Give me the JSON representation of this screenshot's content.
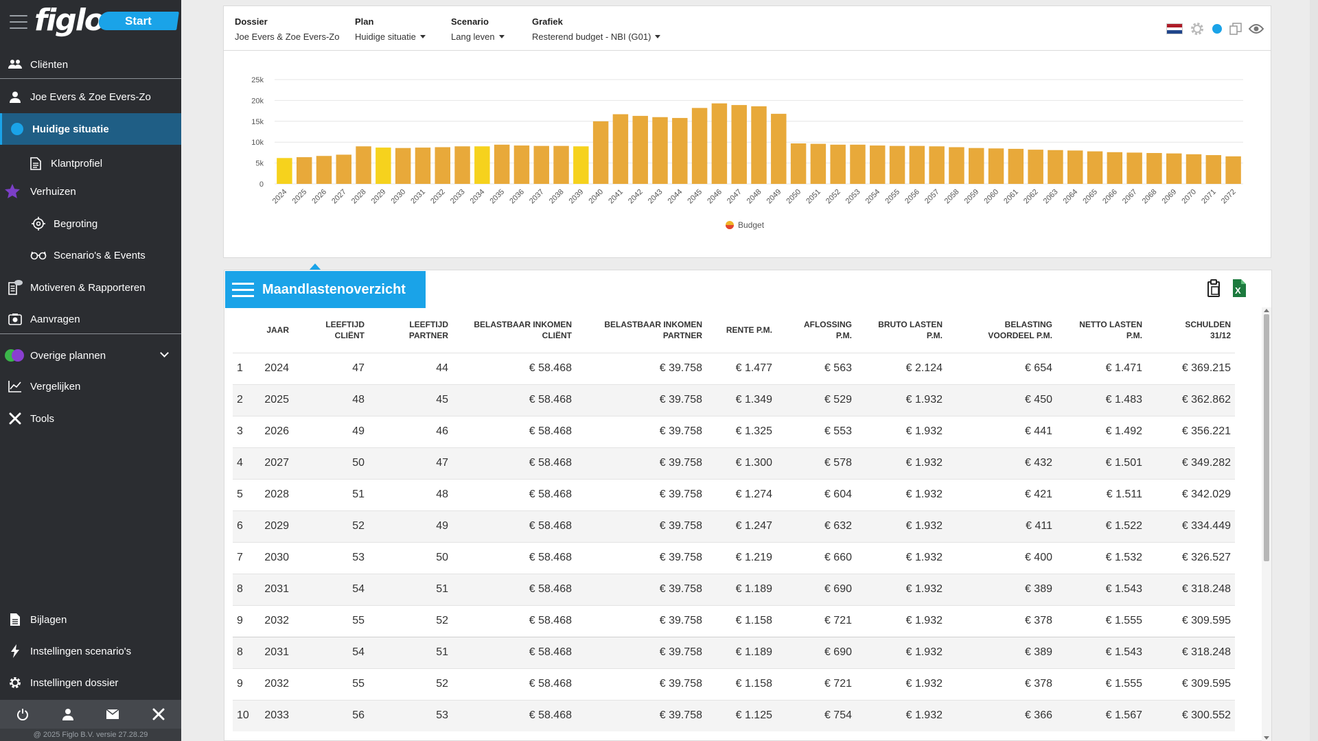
{
  "sidebar": {
    "logo": "figlo",
    "start_label": "Start",
    "items": {
      "clienten": "Cliënten",
      "dossier": "Joe Evers & Zoe Evers-Zo",
      "huidige": "Huidige situatie",
      "klantprofiel": "Klantprofiel",
      "verhuizen": "Verhuizen",
      "begroting": "Begroting",
      "scenarios": "Scenario's & Events",
      "motiveren": "Motiveren & Rapporteren",
      "aanvragen": "Aanvragen",
      "overige": "Overige plannen",
      "vergelijken": "Vergelijken",
      "tools": "Tools",
      "bijlagen": "Bijlagen",
      "inst_scenarios": "Instellingen scenario's",
      "inst_dossier": "Instellingen dossier"
    },
    "copyright": "@ 2025 Figlo B.V. versie 27.28.29"
  },
  "header": {
    "dossier_label": "Dossier",
    "dossier_value": "Joe Evers & Zoe Evers-Zo",
    "plan_label": "Plan",
    "plan_value": "Huidige situatie",
    "scenario_label": "Scenario",
    "scenario_value": "Lang leven",
    "grafiek_label": "Grafiek",
    "grafiek_value": "Resterend budget - NBI (G01)"
  },
  "colors": {
    "accent": "#1aa3e8",
    "bar": "#e8a93a",
    "bar_highlight": "#f6d21d",
    "sidebar_bg": "#2b2d31"
  },
  "chart_data": {
    "type": "bar",
    "categories": [
      "2024",
      "2025",
      "2026",
      "2027",
      "2028",
      "2029",
      "2030",
      "2031",
      "2032",
      "2033",
      "2034",
      "2035",
      "2036",
      "2037",
      "2038",
      "2039",
      "2040",
      "2041",
      "2042",
      "2043",
      "2044",
      "2045",
      "2046",
      "2047",
      "2048",
      "2049",
      "2050",
      "2051",
      "2052",
      "2053",
      "2054",
      "2055",
      "2056",
      "2057",
      "2058",
      "2059",
      "2060",
      "2061",
      "2062",
      "2063",
      "2064",
      "2065",
      "2066",
      "2067",
      "2068",
      "2069",
      "2070",
      "2071",
      "2072"
    ],
    "series": [
      {
        "name": "Budget",
        "values": [
          6200,
          6400,
          6700,
          7000,
          9000,
          8700,
          8600,
          8700,
          8800,
          9000,
          9000,
          9400,
          9200,
          9100,
          9100,
          9000,
          15000,
          16700,
          16300,
          16000,
          15800,
          18200,
          19300,
          18900,
          18600,
          16800,
          9700,
          9600,
          9400,
          9400,
          9200,
          9100,
          9100,
          9000,
          8800,
          8600,
          8500,
          8400,
          8200,
          8100,
          8000,
          7800,
          7600,
          7500,
          7400,
          7300,
          7100,
          6900,
          6600
        ]
      }
    ],
    "highlight_categories": [
      "2024",
      "2029",
      "2034",
      "2039"
    ],
    "yticks": [
      "0",
      "5k",
      "10k",
      "15k",
      "20k",
      "25k"
    ],
    "ylim": [
      0,
      25000
    ],
    "legend": "Budget",
    "legend_position": "bottom-center",
    "grid": true
  },
  "table": {
    "title": "Maandlastenoverzicht",
    "headers": [
      {
        "l1": "",
        "l2": ""
      },
      {
        "l1": "",
        "l2": "Jaar"
      },
      {
        "l1": "Leeftijd",
        "l2": "Cliënt"
      },
      {
        "l1": "Leeftijd",
        "l2": "Partner"
      },
      {
        "l1": "Belastbaar inkomen",
        "l2": "Cliënt"
      },
      {
        "l1": "Belastbaar inkomen",
        "l2": "Partner"
      },
      {
        "l1": "",
        "l2": "Rente P.M."
      },
      {
        "l1": "Aflossing",
        "l2": "P.M."
      },
      {
        "l1": "Bruto lasten",
        "l2": "P.M."
      },
      {
        "l1": "Belasting",
        "l2": "voordeel P.M."
      },
      {
        "l1": "Netto lasten",
        "l2": "P.M."
      },
      {
        "l1": "Schulden",
        "l2": "31/12"
      }
    ],
    "rows": [
      [
        "1",
        "2024",
        "47",
        "44",
        "€ 58.468",
        "€ 39.758",
        "€ 1.477",
        "€ 563",
        "€ 2.124",
        "€ 654",
        "€ 1.471",
        "€ 369.215"
      ],
      [
        "2",
        "2025",
        "48",
        "45",
        "€ 58.468",
        "€ 39.758",
        "€ 1.349",
        "€ 529",
        "€ 1.932",
        "€ 450",
        "€ 1.483",
        "€ 362.862"
      ],
      [
        "3",
        "2026",
        "49",
        "46",
        "€ 58.468",
        "€ 39.758",
        "€ 1.325",
        "€ 553",
        "€ 1.932",
        "€ 441",
        "€ 1.492",
        "€ 356.221"
      ],
      [
        "4",
        "2027",
        "50",
        "47",
        "€ 58.468",
        "€ 39.758",
        "€ 1.300",
        "€ 578",
        "€ 1.932",
        "€ 432",
        "€ 1.501",
        "€ 349.282"
      ],
      [
        "5",
        "2028",
        "51",
        "48",
        "€ 58.468",
        "€ 39.758",
        "€ 1.274",
        "€ 604",
        "€ 1.932",
        "€ 421",
        "€ 1.511",
        "€ 342.029"
      ],
      [
        "6",
        "2029",
        "52",
        "49",
        "€ 58.468",
        "€ 39.758",
        "€ 1.247",
        "€ 632",
        "€ 1.932",
        "€ 411",
        "€ 1.522",
        "€ 334.449"
      ],
      [
        "7",
        "2030",
        "53",
        "50",
        "€ 58.468",
        "€ 39.758",
        "€ 1.219",
        "€ 660",
        "€ 1.932",
        "€ 400",
        "€ 1.532",
        "€ 326.527"
      ],
      [
        "8",
        "2031",
        "54",
        "51",
        "€ 58.468",
        "€ 39.758",
        "€ 1.189",
        "€ 690",
        "€ 1.932",
        "€ 389",
        "€ 1.543",
        "€ 318.248"
      ],
      [
        "9",
        "2032",
        "55",
        "52",
        "€ 58.468",
        "€ 39.758",
        "€ 1.158",
        "€ 721",
        "€ 1.932",
        "€ 378",
        "€ 1.555",
        "€ 309.595"
      ],
      [
        "8",
        "2031",
        "54",
        "51",
        "€ 58.468",
        "€ 39.758",
        "€ 1.189",
        "€ 690",
        "€ 1.932",
        "€ 389",
        "€ 1.543",
        "€ 318.248"
      ],
      [
        "9",
        "2032",
        "55",
        "52",
        "€ 58.468",
        "€ 39.758",
        "€ 1.158",
        "€ 721",
        "€ 1.932",
        "€ 378",
        "€ 1.555",
        "€ 309.595"
      ],
      [
        "10",
        "2033",
        "56",
        "53",
        "€ 58.468",
        "€ 39.758",
        "€ 1.125",
        "€ 754",
        "€ 1.932",
        "€ 366",
        "€ 1.567",
        "€ 300.552"
      ]
    ]
  }
}
